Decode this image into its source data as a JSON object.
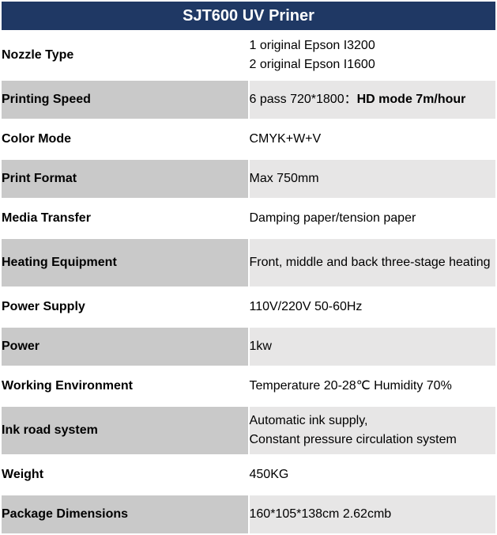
{
  "title": "SJT600 UV Priner",
  "colors": {
    "header_bg": "#1f3864",
    "header_text": "#ffffff",
    "label_bg": "#c9c9c9",
    "value_bg": "#e7e6e6",
    "plain_bg": "#ffffff",
    "border": "#ffffff",
    "text": "#000000"
  },
  "font": {
    "title_size": 20,
    "body_size": 16,
    "family": "Arial"
  },
  "rows": [
    {
      "label": "Nozzle Type",
      "lines": [
        "1 original Epson I3200",
        "2 original Epson I1600"
      ],
      "shaded": false,
      "tall": true
    },
    {
      "label": "Printing Speed",
      "value_prefix": "6 pass 720*1800：",
      "value_bold": "HD mode 7m/hour",
      "shaded": true
    },
    {
      "label": "Color Mode",
      "value": "CMYK+W+V",
      "shaded": false
    },
    {
      "label": "Print Format",
      "value": "Max 750mm",
      "shaded": true
    },
    {
      "label": "Media Transfer",
      "value": "Damping paper/tension paper",
      "shaded": false
    },
    {
      "label": "Heating Equipment",
      "value": "Front, middle and back three-stage heating",
      "shaded": true,
      "tall": true
    },
    {
      "label": "Power Supply",
      "value": "110V/220V 50-60Hz",
      "shaded": false
    },
    {
      "label": "Power",
      "value": "1kw",
      "shaded": true
    },
    {
      "label": "Working Environment",
      "value": "Temperature 20-28℃ Humidity 70%",
      "shaded": false
    },
    {
      "label": "Ink road system",
      "lines": [
        "Automatic ink supply,",
        "Constant pressure circulation system"
      ],
      "shaded": true,
      "tall": true
    },
    {
      "label": "Weight",
      "value": "450KG",
      "shaded": false
    },
    {
      "label": "Package Dimensions",
      "value": "160*105*138cm 2.62cmb",
      "shaded": true
    }
  ]
}
